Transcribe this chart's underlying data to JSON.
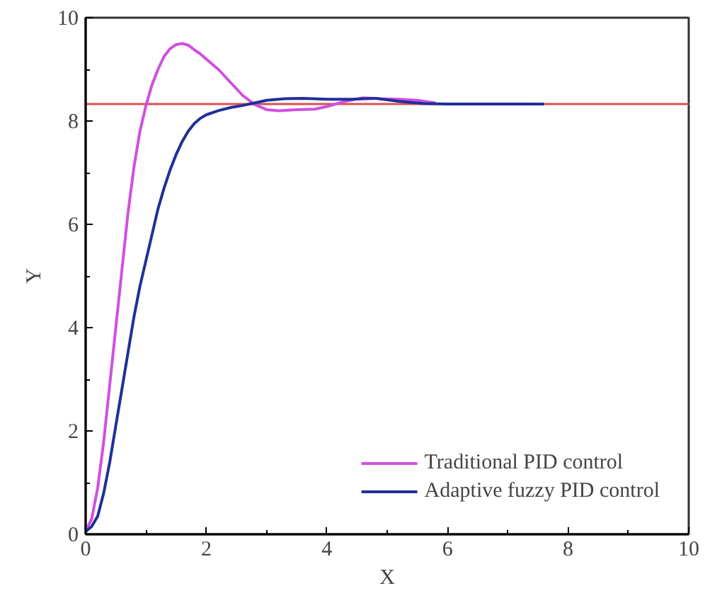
{
  "chart_data": {
    "type": "line",
    "xlabel": "X",
    "ylabel": "Y",
    "xlim": [
      0,
      10
    ],
    "ylim": [
      0,
      10
    ],
    "xticks": [
      0,
      2,
      4,
      6,
      8,
      10
    ],
    "yticks": [
      0,
      2,
      4,
      6,
      8,
      10
    ],
    "grid": false,
    "legend": "bottom right",
    "line_style": "solid",
    "marker": "none",
    "ref_lines": [
      {
        "axis": "y",
        "value": 8.33,
        "color": "#d9534f"
      }
    ],
    "series": [
      {
        "name": "Traditional PID control",
        "color": "#d14fe0",
        "x": [
          0,
          0.1,
          0.2,
          0.3,
          0.4,
          0.5,
          0.6,
          0.7,
          0.8,
          0.9,
          1.0,
          1.1,
          1.2,
          1.3,
          1.4,
          1.5,
          1.6,
          1.7,
          1.8,
          1.9,
          2.0,
          2.2,
          2.4,
          2.6,
          2.8,
          3.0,
          3.2,
          3.5,
          3.8,
          4.0,
          4.3,
          4.6,
          4.9,
          5.2,
          5.5,
          5.8
        ],
        "values": [
          0.05,
          0.3,
          0.9,
          1.8,
          2.9,
          4.0,
          5.1,
          6.2,
          7.1,
          7.8,
          8.3,
          8.7,
          9.0,
          9.25,
          9.4,
          9.48,
          9.5,
          9.47,
          9.38,
          9.3,
          9.2,
          9.0,
          8.75,
          8.5,
          8.32,
          8.22,
          8.2,
          8.22,
          8.23,
          8.28,
          8.38,
          8.45,
          8.43,
          8.42,
          8.4,
          8.35
        ]
      },
      {
        "name": "Adaptive fuzzy PID control",
        "color": "#1f2f9a",
        "x": [
          0,
          0.1,
          0.2,
          0.3,
          0.4,
          0.5,
          0.6,
          0.7,
          0.8,
          0.9,
          1.0,
          1.1,
          1.2,
          1.3,
          1.4,
          1.5,
          1.6,
          1.7,
          1.8,
          1.9,
          2.0,
          2.2,
          2.4,
          2.6,
          2.8,
          3.0,
          3.3,
          3.6,
          4.0,
          4.4,
          4.8,
          5.2,
          5.6,
          6.0,
          7.0,
          7.6
        ],
        "values": [
          0.05,
          0.15,
          0.35,
          0.8,
          1.4,
          2.1,
          2.8,
          3.5,
          4.2,
          4.8,
          5.3,
          5.8,
          6.3,
          6.7,
          7.05,
          7.35,
          7.6,
          7.8,
          7.95,
          8.05,
          8.12,
          8.2,
          8.26,
          8.3,
          8.35,
          8.4,
          8.43,
          8.44,
          8.42,
          8.42,
          8.44,
          8.38,
          8.34,
          8.33,
          8.33,
          8.33
        ]
      }
    ]
  }
}
